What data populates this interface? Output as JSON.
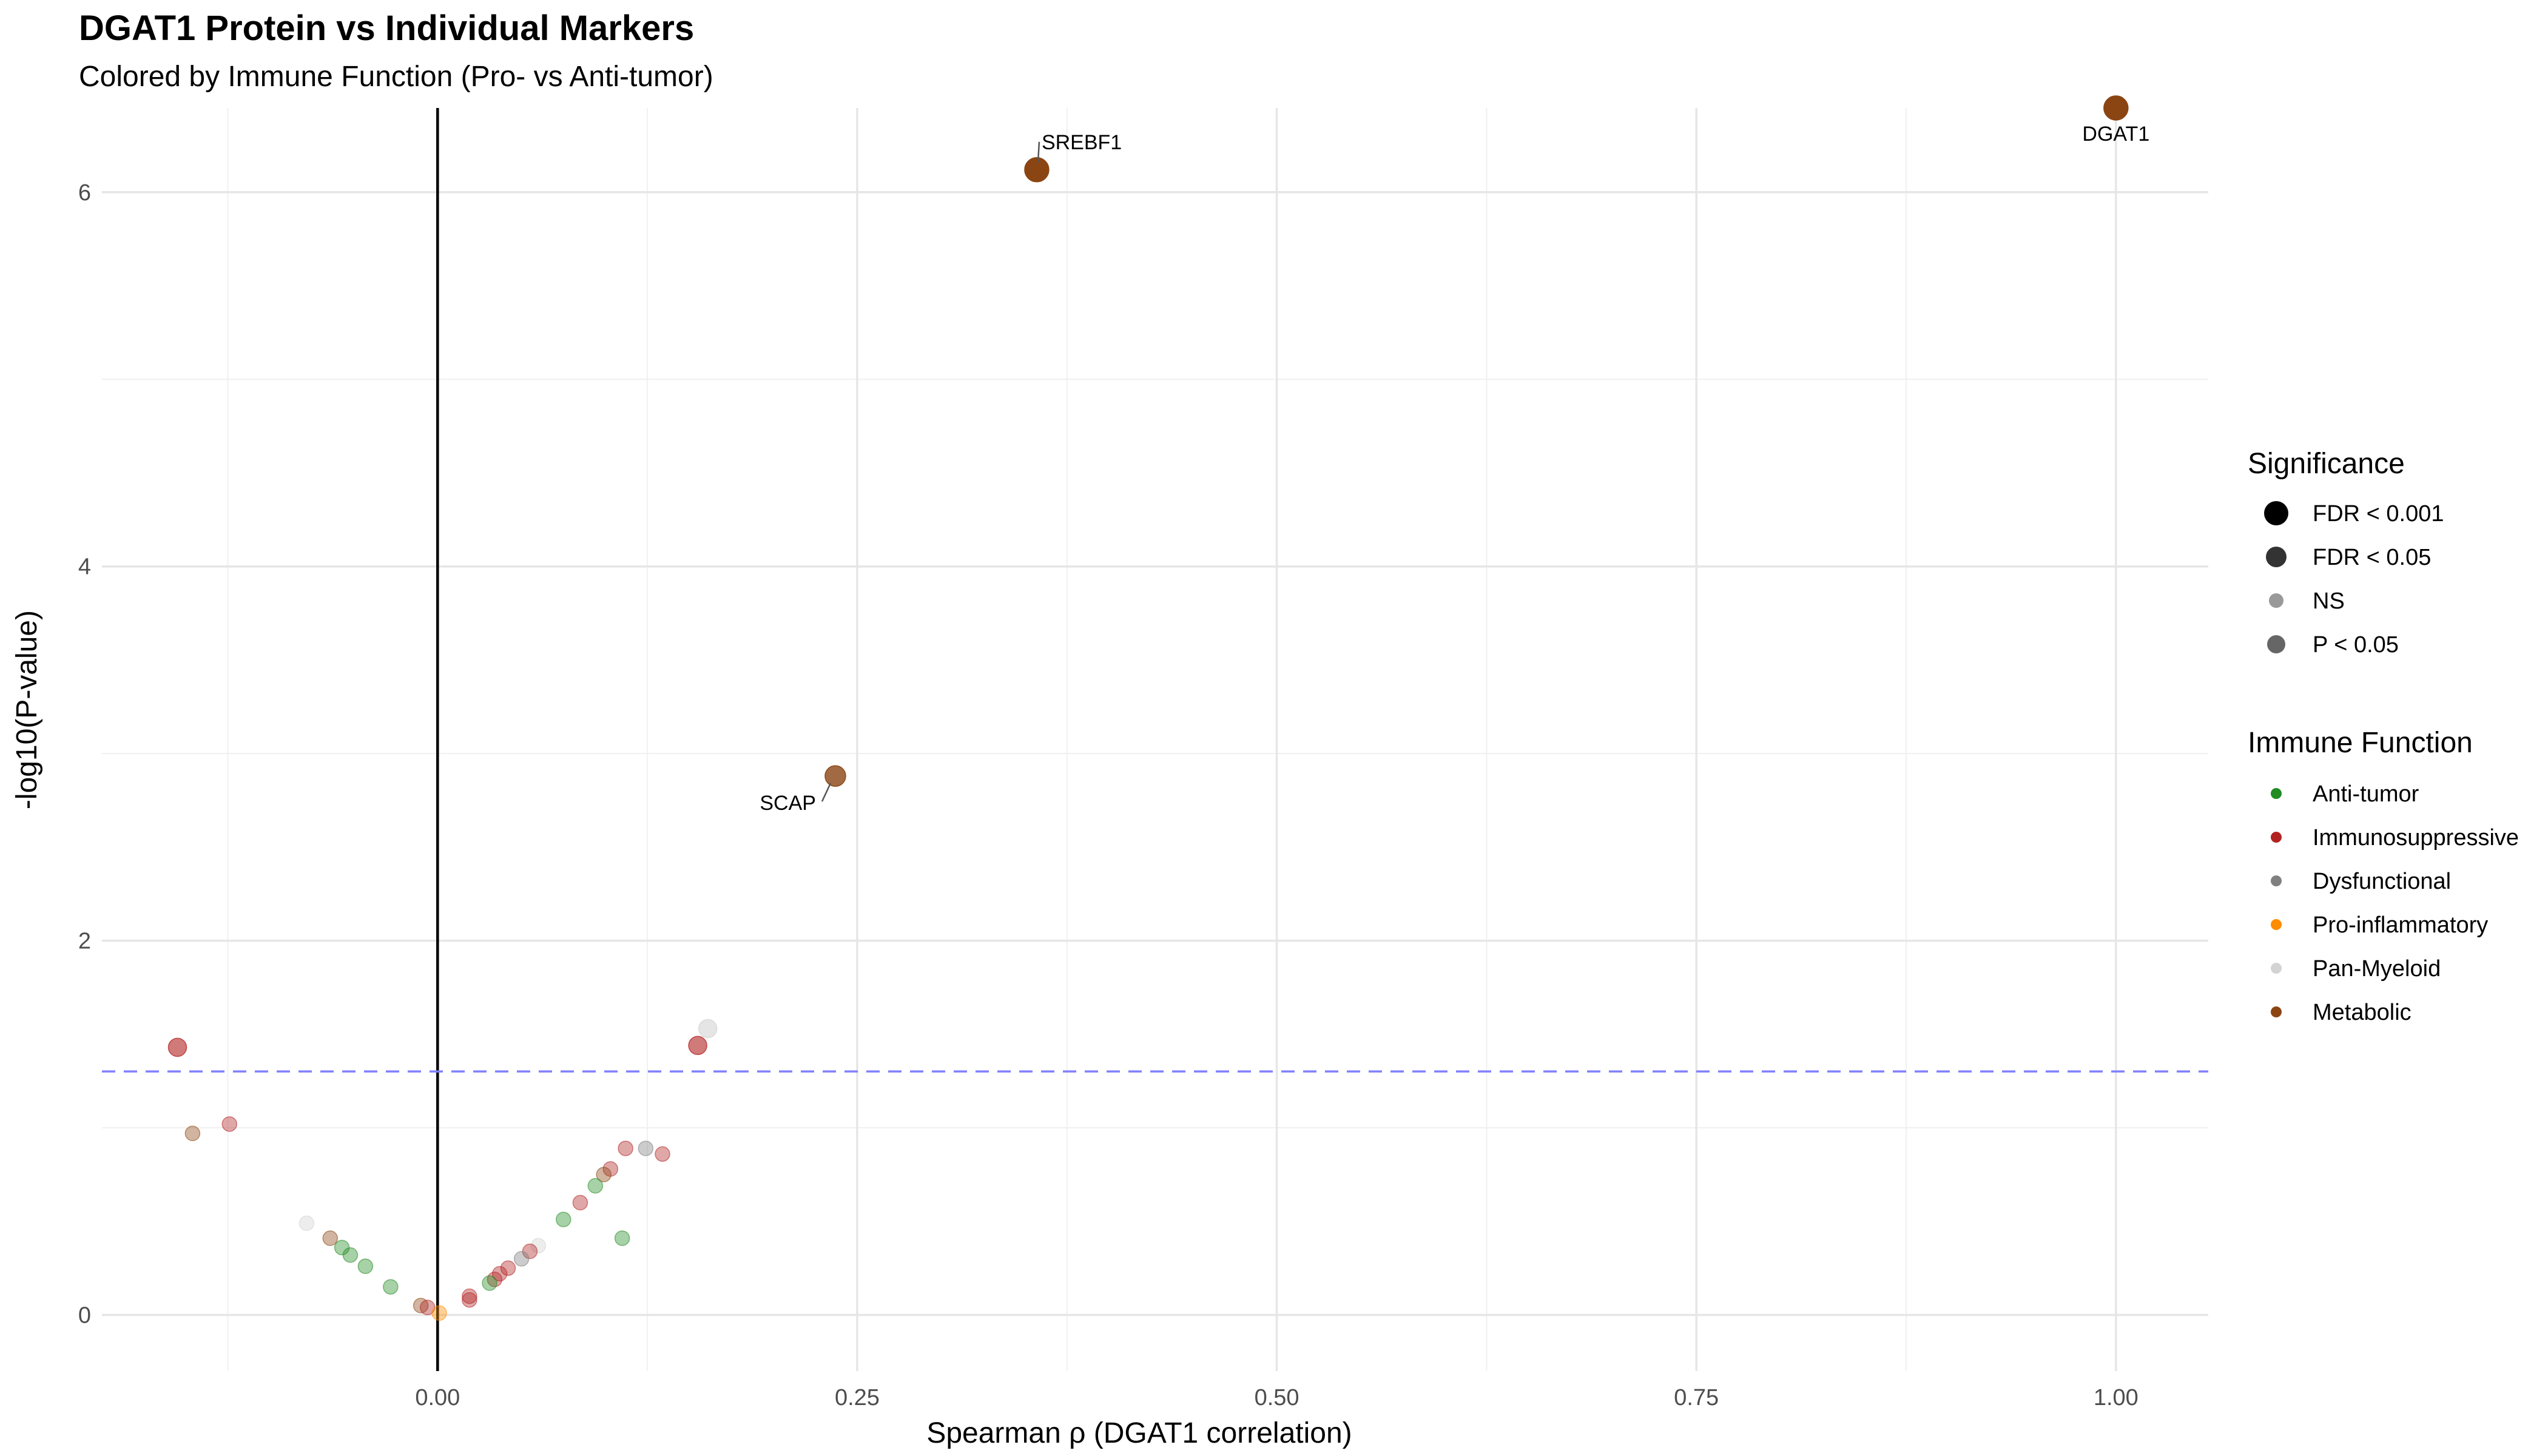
{
  "chart_data": {
    "type": "scatter",
    "title": "DGAT1 Protein vs Individual Markers",
    "subtitle": "Colored by Immune Function (Pro- vs Anti-tumor)",
    "xlabel": "Spearman ρ (DGAT1 correlation)",
    "ylabel": "-log10(P-value)",
    "xlim": [
      -0.2,
      1.055
    ],
    "ylim": [
      -0.3,
      6.45
    ],
    "x_ticks": [
      0.0,
      0.25,
      0.5,
      0.75,
      1.0
    ],
    "x_tick_labels": [
      "0.00",
      "0.25",
      "0.50",
      "0.75",
      "1.00"
    ],
    "y_ticks": [
      0,
      2,
      4,
      6
    ],
    "y_tick_labels": [
      "0",
      "2",
      "4",
      "6"
    ],
    "grid": true,
    "reference_lines": [
      {
        "orientation": "vertical",
        "x": 0.0,
        "style": "solid",
        "color": "#000000"
      },
      {
        "orientation": "horizontal",
        "y": 1.30103,
        "style": "dashed",
        "color": "#8080ff"
      }
    ],
    "legend_position": "right",
    "legends": {
      "significance": {
        "title": "Significance",
        "items": [
          {
            "label": "FDR < 0.001",
            "key": "fdr001"
          },
          {
            "label": "FDR < 0.05",
            "key": "fdr05"
          },
          {
            "label": "NS",
            "key": "ns"
          },
          {
            "label": "P < 0.05",
            "key": "p05"
          }
        ]
      },
      "function": {
        "title": "Immune Function",
        "items": [
          {
            "label": "Anti-tumor",
            "color": "#228B22"
          },
          {
            "label": "Immunosuppressive",
            "color": "#B22222"
          },
          {
            "label": "Dysfunctional",
            "color": "#808080"
          },
          {
            "label": "Pro-inflammatory",
            "color": "#FF8C00"
          },
          {
            "label": "Pan-Myeloid",
            "color": "#D3D3D3"
          },
          {
            "label": "Metabolic",
            "color": "#8B4513"
          }
        ]
      }
    },
    "points": [
      {
        "x": 1.0,
        "y": 6.45,
        "function": "Metabolic",
        "significance": "FDR < 0.001",
        "label": "DGAT1"
      },
      {
        "x": 0.357,
        "y": 6.12,
        "function": "Metabolic",
        "significance": "FDR < 0.001",
        "label": "SREBF1"
      },
      {
        "x": 0.237,
        "y": 2.88,
        "function": "Metabolic",
        "significance": "FDR < 0.05",
        "label": "SCAP"
      },
      {
        "x": 0.161,
        "y": 1.53,
        "function": "Pan-Myeloid",
        "significance": "P < 0.05"
      },
      {
        "x": 0.155,
        "y": 1.44,
        "function": "Immunosuppressive",
        "significance": "P < 0.05"
      },
      {
        "x": -0.155,
        "y": 1.43,
        "function": "Immunosuppressive",
        "significance": "P < 0.05"
      },
      {
        "x": -0.124,
        "y": 1.02,
        "function": "Immunosuppressive",
        "significance": "NS"
      },
      {
        "x": -0.146,
        "y": 0.97,
        "function": "Metabolic",
        "significance": "NS"
      },
      {
        "x": 0.112,
        "y": 0.89,
        "function": "Immunosuppressive",
        "significance": "NS"
      },
      {
        "x": 0.124,
        "y": 0.89,
        "function": "Dysfunctional",
        "significance": "NS"
      },
      {
        "x": 0.134,
        "y": 0.86,
        "function": "Immunosuppressive",
        "significance": "NS"
      },
      {
        "x": 0.103,
        "y": 0.78,
        "function": "Immunosuppressive",
        "significance": "NS"
      },
      {
        "x": 0.099,
        "y": 0.75,
        "function": "Metabolic",
        "significance": "NS"
      },
      {
        "x": 0.094,
        "y": 0.69,
        "function": "Anti-tumor",
        "significance": "NS"
      },
      {
        "x": 0.085,
        "y": 0.6,
        "function": "Immunosuppressive",
        "significance": "NS"
      },
      {
        "x": 0.075,
        "y": 0.51,
        "function": "Anti-tumor",
        "significance": "NS"
      },
      {
        "x": -0.078,
        "y": 0.49,
        "function": "Pan-Myeloid",
        "significance": "NS"
      },
      {
        "x": -0.064,
        "y": 0.41,
        "function": "Metabolic",
        "significance": "NS"
      },
      {
        "x": 0.11,
        "y": 0.41,
        "function": "Anti-tumor",
        "significance": "NS"
      },
      {
        "x": -0.057,
        "y": 0.36,
        "function": "Anti-tumor",
        "significance": "NS"
      },
      {
        "x": 0.06,
        "y": 0.37,
        "function": "Pan-Myeloid",
        "significance": "NS"
      },
      {
        "x": 0.055,
        "y": 0.34,
        "function": "Immunosuppressive",
        "significance": "NS"
      },
      {
        "x": -0.052,
        "y": 0.32,
        "function": "Anti-tumor",
        "significance": "NS"
      },
      {
        "x": 0.05,
        "y": 0.3,
        "function": "Dysfunctional",
        "significance": "NS"
      },
      {
        "x": -0.043,
        "y": 0.26,
        "function": "Anti-tumor",
        "significance": "NS"
      },
      {
        "x": 0.042,
        "y": 0.25,
        "function": "Immunosuppressive",
        "significance": "NS"
      },
      {
        "x": 0.037,
        "y": 0.22,
        "function": "Immunosuppressive",
        "significance": "NS"
      },
      {
        "x": 0.034,
        "y": 0.19,
        "function": "Immunosuppressive",
        "significance": "NS"
      },
      {
        "x": 0.031,
        "y": 0.17,
        "function": "Anti-tumor",
        "significance": "NS"
      },
      {
        "x": -0.028,
        "y": 0.15,
        "function": "Anti-tumor",
        "significance": "NS"
      },
      {
        "x": 0.019,
        "y": 0.1,
        "function": "Immunosuppressive",
        "significance": "NS"
      },
      {
        "x": 0.019,
        "y": 0.08,
        "function": "Immunosuppressive",
        "significance": "NS"
      },
      {
        "x": -0.01,
        "y": 0.05,
        "function": "Metabolic",
        "significance": "NS"
      },
      {
        "x": -0.006,
        "y": 0.04,
        "function": "Immunosuppressive",
        "significance": "NS"
      },
      {
        "x": 0.001,
        "y": 0.01,
        "function": "Pro-inflammatory",
        "significance": "NS"
      }
    ]
  }
}
